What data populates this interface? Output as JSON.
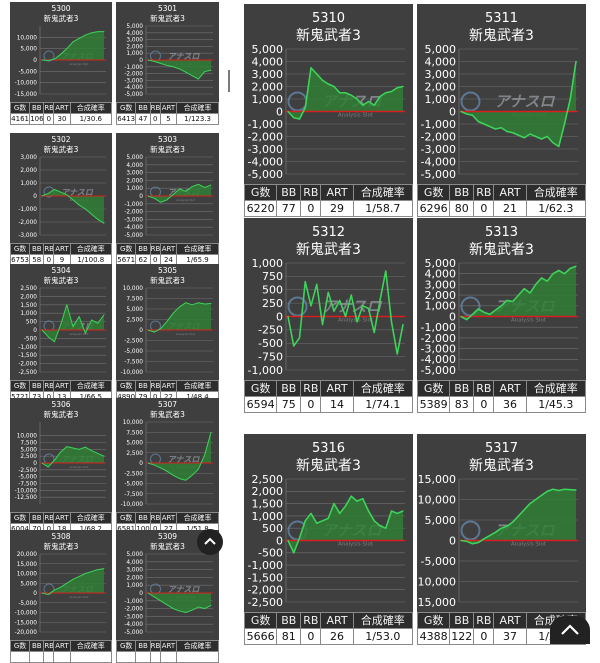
{
  "colors": {
    "panel_bg": "#3f3f3f",
    "grid": "#707070",
    "line": "#3dd35a",
    "fill": "#2f7e35",
    "zero_line": "#d81f1f",
    "text": "#ffffff",
    "header_bg": "#2d2d2d"
  },
  "watermark": {
    "name": "アナスロ",
    "sub": "Analysis Slot"
  },
  "columns": [
    "G数",
    "BB",
    "RB",
    "ART",
    "合成確率"
  ],
  "ui": {
    "scroll_top_icon": "chevron-up-icon"
  },
  "machines": [
    {
      "id": "5300",
      "name": "新鬼武者3",
      "ylim": [
        -15000,
        15000
      ],
      "ticks": [
        10000,
        5000,
        0,
        -5000,
        -10000,
        -15000
      ],
      "stats": [
        "4161",
        "106",
        "0",
        "30",
        "1/30.6"
      ],
      "chart_data": {
        "type": "area",
        "x": [
          0,
          1,
          2,
          3,
          4,
          5,
          6,
          7,
          8,
          9,
          10
        ],
        "y": [
          0,
          -200,
          400,
          2500,
          5000,
          8000,
          9500,
          11000,
          12000,
          12500,
          12500
        ]
      }
    },
    {
      "id": "5301",
      "name": "新鬼武者3",
      "ylim": [
        -5000,
        5000
      ],
      "ticks": [
        5000,
        4000,
        3000,
        2000,
        1000,
        0,
        -1000,
        -2000,
        -3000,
        -4000,
        -5000
      ],
      "stats": [
        "6413",
        "47",
        "0",
        "5",
        "1/123.3"
      ],
      "chart_data": {
        "type": "area",
        "x": [
          0,
          1,
          2,
          3,
          4,
          5,
          6,
          7,
          8,
          9,
          10
        ],
        "y": [
          0,
          -200,
          -500,
          -800,
          -1000,
          -1300,
          -1800,
          -2300,
          -2800,
          -1700,
          -1500
        ]
      }
    },
    {
      "id": "5302",
      "name": "新鬼武者3",
      "ylim": [
        -3000,
        3000
      ],
      "ticks": [
        3000,
        2000,
        1000,
        0,
        -1000,
        -2000,
        -3000
      ],
      "stats": [
        "6753",
        "58",
        "0",
        "9",
        "1/100.8"
      ],
      "chart_data": {
        "type": "area",
        "x": [
          0,
          1,
          2,
          3,
          4,
          5,
          6,
          7,
          8,
          9,
          10
        ],
        "y": [
          0,
          200,
          500,
          300,
          100,
          -300,
          -700,
          -1000,
          -1400,
          -1800,
          -2100
        ]
      }
    },
    {
      "id": "5303",
      "name": "新鬼武者3",
      "ylim": [
        -5000,
        5000
      ],
      "ticks": [
        5000,
        4000,
        3000,
        2000,
        1000,
        0,
        -1000,
        -2000,
        -3000,
        -4000,
        -5000
      ],
      "stats": [
        "5671",
        "62",
        "0",
        "24",
        "1/65.9"
      ],
      "chart_data": {
        "type": "area",
        "x": [
          0,
          1,
          2,
          3,
          4,
          5,
          6,
          7,
          8,
          9,
          10
        ],
        "y": [
          0,
          -300,
          -800,
          -500,
          200,
          900,
          600,
          1200,
          1500,
          1100,
          1400
        ]
      }
    },
    {
      "id": "5304",
      "name": "新鬼武者3",
      "ylim": [
        -2500,
        2500
      ],
      "ticks": [
        2500,
        2000,
        1500,
        1000,
        500,
        0,
        -500,
        -1000,
        -1500,
        -2000,
        -2500
      ],
      "stats": [
        "5721",
        "73",
        "0",
        "13",
        "1/66.5"
      ],
      "chart_data": {
        "type": "area",
        "x": [
          0,
          1,
          2,
          3,
          4,
          5,
          6,
          7,
          8,
          9,
          10
        ],
        "y": [
          0,
          -400,
          -700,
          300,
          1500,
          200,
          800,
          -200,
          600,
          400,
          900
        ]
      }
    },
    {
      "id": "5305",
      "name": "新鬼武者3",
      "ylim": [
        -10000,
        10000
      ],
      "ticks": [
        10000,
        7500,
        5000,
        2500,
        0,
        -2500,
        -5000,
        -7500,
        -10000
      ],
      "stats": [
        "4890",
        "79",
        "0",
        "22",
        "1/48.4"
      ],
      "chart_data": {
        "type": "area",
        "x": [
          0,
          1,
          2,
          3,
          4,
          5,
          6,
          7,
          8,
          9,
          10
        ],
        "y": [
          0,
          -500,
          300,
          2000,
          4000,
          5500,
          6500,
          6000,
          6500,
          6200,
          6300
        ]
      }
    },
    {
      "id": "5306",
      "name": "新鬼武者3",
      "ylim": [
        -15000,
        15000
      ],
      "ticks": [
        10000,
        7500,
        5000,
        2500,
        0,
        -2500,
        -5000,
        -7500,
        -10000,
        -12500
      ],
      "stats": [
        "6004",
        "70",
        "0",
        "18",
        "1/68.2"
      ],
      "chart_data": {
        "type": "area",
        "x": [
          0,
          1,
          2,
          3,
          4,
          5,
          6,
          7,
          8,
          9,
          10
        ],
        "y": [
          0,
          -1500,
          1000,
          4000,
          6000,
          5500,
          5000,
          5800,
          4500,
          3500,
          2500
        ]
      }
    },
    {
      "id": "5307",
      "name": "新鬼武者3",
      "ylim": [
        -10000,
        10000
      ],
      "ticks": [
        10000,
        7500,
        5000,
        2500,
        0,
        -2500,
        -5000,
        -7500,
        -10000
      ],
      "stats": [
        "6581",
        "100",
        "0",
        "27",
        "1/51.8"
      ],
      "chart_data": {
        "type": "area",
        "x": [
          0,
          1,
          2,
          3,
          4,
          5,
          6,
          7,
          8,
          9,
          10
        ],
        "y": [
          0,
          -500,
          -1200,
          -2000,
          -3000,
          -3800,
          -4200,
          -3000,
          -1500,
          2000,
          7500
        ]
      }
    },
    {
      "id": "5308",
      "name": "新鬼武者3",
      "ylim": [
        -20000,
        20000
      ],
      "ticks": [
        20000,
        15000,
        10000,
        5000,
        0,
        -5000,
        -10000,
        -15000,
        -20000
      ],
      "stats": [
        "",
        "",
        "",
        "",
        ""
      ],
      "chart_data": {
        "type": "area",
        "x": [
          0,
          1,
          2,
          3,
          4,
          5,
          6,
          7,
          8,
          9,
          10
        ],
        "y": [
          0,
          -800,
          1500,
          3000,
          5000,
          7000,
          8500,
          10000,
          11000,
          12000,
          12500
        ]
      }
    },
    {
      "id": "5309",
      "name": "新鬼武者3",
      "ylim": [
        -5000,
        5000
      ],
      "ticks": [
        5000,
        4000,
        3000,
        2000,
        1000,
        0,
        -1000,
        -2000,
        -3000,
        -4000,
        -5000
      ],
      "stats": [
        "",
        "",
        "",
        "",
        ""
      ],
      "chart_data": {
        "type": "area",
        "x": [
          0,
          1,
          2,
          3,
          4,
          5,
          6,
          7,
          8,
          9,
          10
        ],
        "y": [
          0,
          -500,
          -1000,
          -1500,
          -2000,
          -2300,
          -2500,
          -2200,
          -1800,
          -2000,
          -1600
        ]
      }
    },
    {
      "id": "5310",
      "name": "新鬼武者3",
      "ylim": [
        -5000,
        5000
      ],
      "ticks": [
        5000,
        4000,
        3000,
        2000,
        1000,
        0,
        -1000,
        -2000,
        -3000,
        -4000,
        -5000
      ],
      "stats": [
        "6220",
        "77",
        "0",
        "29",
        "1/58.7"
      ],
      "chart_data": {
        "type": "area",
        "x": [
          0,
          1,
          2,
          3,
          4,
          5,
          6,
          7,
          8,
          9,
          10,
          11,
          12,
          13,
          14,
          15,
          16,
          17,
          18,
          19,
          20
        ],
        "y": [
          0,
          -500,
          -600,
          300,
          3500,
          3000,
          2500,
          2200,
          2000,
          1500,
          1500,
          1300,
          1000,
          500,
          800,
          500,
          1200,
          1500,
          1600,
          1900,
          2000
        ]
      }
    },
    {
      "id": "5311",
      "name": "新鬼武者3",
      "ylim": [
        -5000,
        5000
      ],
      "ticks": [
        5000,
        4000,
        3000,
        2000,
        1000,
        0,
        -1000,
        -2000,
        -3000,
        -4000,
        -5000
      ],
      "stats": [
        "6296",
        "80",
        "0",
        "21",
        "1/62.3"
      ],
      "chart_data": {
        "type": "area",
        "x": [
          0,
          1,
          2,
          3,
          4,
          5,
          6,
          7,
          8,
          9,
          10,
          11,
          12,
          13,
          14,
          15,
          16,
          17,
          18,
          19,
          20
        ],
        "y": [
          0,
          -200,
          -300,
          -800,
          -1000,
          -1200,
          -1400,
          -1300,
          -1600,
          -1700,
          -1900,
          -2100,
          -1800,
          -2000,
          -2200,
          -2000,
          -2500,
          -2800,
          -1000,
          1000,
          4000
        ]
      }
    },
    {
      "id": "5312",
      "name": "新鬼武者3",
      "ylim": [
        -1000,
        1000
      ],
      "ticks": [
        1000,
        750,
        500,
        250,
        0,
        -250,
        -500,
        -750,
        -1000
      ],
      "stats": [
        "6594",
        "75",
        "0",
        "14",
        "1/74.1"
      ],
      "chart_data": {
        "type": "line",
        "x": [
          0,
          1,
          2,
          3,
          4,
          5,
          6,
          7,
          8,
          9,
          10,
          11,
          12,
          13,
          14,
          15,
          16,
          17,
          18,
          19,
          20
        ],
        "y": [
          0,
          -550,
          -400,
          650,
          200,
          600,
          -150,
          450,
          100,
          300,
          0,
          400,
          -100,
          200,
          150,
          -300,
          300,
          850,
          -100,
          -700,
          -150
        ]
      }
    },
    {
      "id": "5313",
      "name": "新鬼武者3",
      "ylim": [
        -5000,
        5000
      ],
      "ticks": [
        5000,
        4000,
        3000,
        2000,
        1000,
        0,
        -1000,
        -2000,
        -3000,
        -4000,
        -5000
      ],
      "stats": [
        "5389",
        "83",
        "0",
        "36",
        "1/45.3"
      ],
      "chart_data": {
        "type": "area",
        "x": [
          0,
          1,
          2,
          3,
          4,
          5,
          6,
          7,
          8,
          9,
          10,
          11,
          12,
          13,
          14,
          15,
          16,
          17,
          18,
          19,
          20
        ],
        "y": [
          0,
          -300,
          200,
          700,
          400,
          200,
          600,
          1000,
          1500,
          1400,
          2000,
          2600,
          2200,
          3000,
          3600,
          3300,
          4000,
          4300,
          4000,
          4500,
          4700
        ]
      }
    },
    {
      "id": "5316",
      "name": "新鬼武者3",
      "ylim": [
        -2500,
        2500
      ],
      "ticks": [
        2500,
        2000,
        1500,
        1000,
        500,
        0,
        -500,
        -1000,
        -1500,
        -2000,
        -2500
      ],
      "stats": [
        "5666",
        "81",
        "0",
        "26",
        "1/53.0"
      ],
      "chart_data": {
        "type": "area",
        "x": [
          0,
          1,
          2,
          3,
          4,
          5,
          6,
          7,
          8,
          9,
          10,
          11,
          12,
          13,
          14,
          15,
          16,
          17,
          18,
          19,
          20
        ],
        "y": [
          0,
          -500,
          100,
          800,
          1100,
          700,
          800,
          900,
          1500,
          1100,
          1400,
          1800,
          1600,
          1700,
          1200,
          800,
          600,
          500,
          1200,
          1100,
          1200
        ]
      }
    },
    {
      "id": "5317",
      "name": "新鬼武者3",
      "ylim": [
        -15000,
        15000
      ],
      "ticks": [
        15000,
        10000,
        5000,
        0,
        -5000,
        -10000,
        -15000
      ],
      "stats": [
        "4388",
        "122",
        "0",
        "37",
        "1/27.6"
      ],
      "chart_data": {
        "type": "area",
        "x": [
          0,
          1,
          2,
          3,
          4,
          5,
          6,
          7,
          8,
          9,
          10,
          11,
          12,
          13,
          14,
          15,
          16,
          17,
          18,
          19,
          20
        ],
        "y": [
          0,
          -200,
          -800,
          -500,
          400,
          1200,
          2000,
          3000,
          3500,
          4500,
          6000,
          7500,
          9000,
          10000,
          11000,
          12000,
          12500,
          12200,
          12500,
          12400,
          12300
        ]
      }
    }
  ]
}
